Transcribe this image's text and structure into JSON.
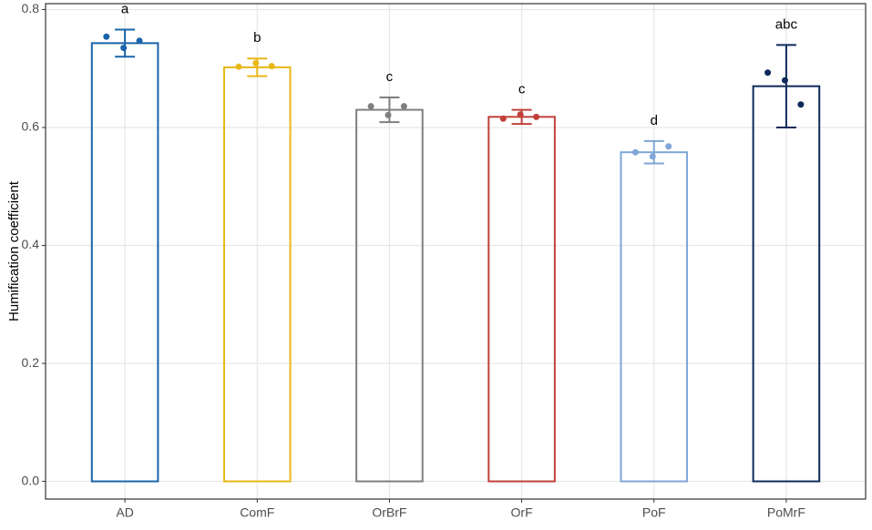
{
  "chart_data": {
    "type": "bar",
    "y_label": "Humification coefficient",
    "categories": [
      "AD",
      "ComF",
      "OrBrF",
      "OrF",
      "PoF",
      "PoMrF"
    ],
    "values": [
      0.743,
      0.702,
      0.63,
      0.618,
      0.558,
      0.67
    ],
    "errors": [
      0.023,
      0.015,
      0.021,
      0.012,
      0.019,
      0.07
    ],
    "points": [
      [
        0.754,
        0.735,
        0.747
      ],
      [
        0.703,
        0.709,
        0.704
      ],
      [
        0.636,
        0.621,
        0.636
      ],
      [
        0.615,
        0.622,
        0.618
      ],
      [
        0.558,
        0.551,
        0.568
      ],
      [
        0.693,
        0.68,
        0.639
      ]
    ],
    "significance": [
      "a",
      "b",
      "c",
      "c",
      "d",
      "abc"
    ],
    "colors": [
      "#1a64ab",
      "#e8b818",
      "#7f7f7f",
      "#c0413a",
      "#7fa6d6",
      "#0e2a5a"
    ],
    "ylim": [
      -0.03,
      0.81
    ],
    "yticks": [
      {
        "value": 0,
        "label": "0.0"
      },
      0.2,
      0.4,
      0.6,
      0.8
    ],
    "grid": true
  }
}
